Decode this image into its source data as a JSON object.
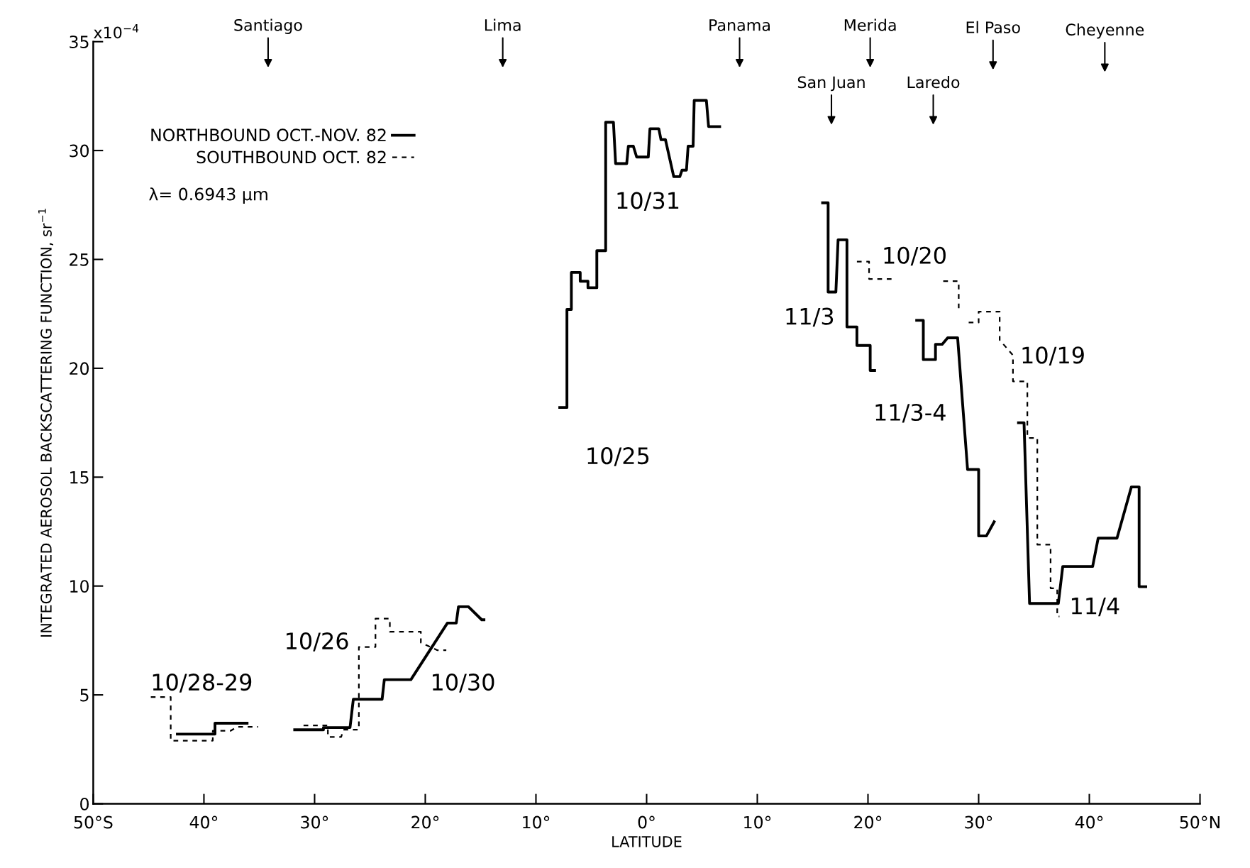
{
  "chart_data": {
    "type": "line",
    "xlabel": "LATITUDE",
    "ylabel": "INTEGRATED AEROSOL BACKSCATTERING FUNCTION, sr$^{−1}$",
    "xlim": [
      -50,
      50
    ],
    "ylim": [
      0,
      35
    ],
    "xticks": [
      {
        "value": -50,
        "label": "50°S"
      },
      {
        "value": -40,
        "label": "40°"
      },
      {
        "value": -30,
        "label": "30°"
      },
      {
        "value": -20,
        "label": "20°"
      },
      {
        "value": -10,
        "label": "10°"
      },
      {
        "value": 0,
        "label": "0°"
      },
      {
        "value": 10,
        "label": "10°"
      },
      {
        "value": 20,
        "label": "20°"
      },
      {
        "value": 30,
        "label": "30°"
      },
      {
        "value": 40,
        "label": "40°"
      },
      {
        "value": 50,
        "label": "50°N"
      }
    ],
    "yticks": [
      0,
      5,
      10,
      15,
      20,
      25,
      30,
      35
    ],
    "grid": false,
    "legend": "top left",
    "marker": "none",
    "series": [
      {
        "name": "NORTHBOUND OCT.-NOV. 82",
        "color": "#000000",
        "line_style": "solid",
        "x": [
          -42.4,
          -39.0,
          -39.0,
          -36.1,
          null,
          -31.8,
          -29.2,
          -29.2,
          -26.8,
          -26.5,
          -23.9,
          -23.7,
          -21.3,
          -18.0,
          -17.2,
          -17.0,
          -16.1,
          -14.9,
          -14.7,
          null,
          -7.85,
          -7.2,
          -7.2,
          -6.8,
          -6.8,
          -6.0,
          -6.0,
          -5.3,
          -5.3,
          -4.5,
          -4.5,
          -3.7,
          -3.7,
          -3.0,
          -2.8,
          -1.8,
          -1.65,
          -1.2,
          -0.9,
          0.15,
          0.3,
          1.1,
          1.3,
          1.7,
          2.45,
          3.0,
          3.2,
          3.6,
          3.75,
          4.2,
          4.3,
          5.4,
          5.6,
          6.6,
          null,
          15.9,
          16.4,
          16.4,
          17.1,
          17.3,
          18.1,
          18.1,
          19.0,
          19.0,
          20.2,
          20.2,
          20.6,
          null,
          24.4,
          25.0,
          25.0,
          26.1,
          26.1,
          26.7,
          27.2,
          28.1,
          29.0,
          30.0,
          30.0,
          30.7,
          31.4,
          null,
          33.6,
          34.1,
          34.6,
          37.2,
          37.6,
          40.3,
          40.8,
          42.5,
          43.8,
          44.5,
          44.5,
          45.1
        ],
        "values": [
          3.2,
          3.2,
          3.7,
          3.7,
          null,
          3.4,
          3.4,
          3.5,
          3.5,
          4.8,
          4.8,
          5.7,
          5.7,
          8.3,
          8.3,
          9.05,
          9.05,
          8.45,
          8.45,
          null,
          18.2,
          18.2,
          22.7,
          22.7,
          24.4,
          24.4,
          24.0,
          24.0,
          23.7,
          23.7,
          25.4,
          25.4,
          31.3,
          31.3,
          29.4,
          29.4,
          30.2,
          30.2,
          29.7,
          29.7,
          31.0,
          31.0,
          30.5,
          30.5,
          28.8,
          28.8,
          29.1,
          29.1,
          30.2,
          30.2,
          32.3,
          32.3,
          31.1,
          31.1,
          null,
          27.6,
          27.6,
          23.5,
          23.5,
          25.9,
          25.9,
          21.9,
          21.9,
          21.05,
          21.05,
          19.9,
          19.9,
          null,
          22.2,
          22.2,
          20.4,
          20.4,
          21.1,
          21.1,
          21.4,
          21.4,
          15.35,
          15.35,
          12.3,
          12.3,
          12.95,
          null,
          17.5,
          17.5,
          9.2,
          9.2,
          10.9,
          10.9,
          12.2,
          12.2,
          14.55,
          14.55,
          9.97,
          9.97
        ]
      },
      {
        "name": "SOUTHBOUND OCT. 82",
        "color": "#000000",
        "line_style": "dashed",
        "x": [
          -44.8,
          -43.0,
          -43.0,
          -39.2,
          -39.2,
          -37.6,
          -37.0,
          -35.1,
          null,
          -31.0,
          -28.8,
          -28.8,
          -27.6,
          -27.4,
          -26.0,
          -26.0,
          -24.5,
          -24.5,
          -23.2,
          -23.2,
          -20.4,
          -20.4,
          -18.9,
          -18.1,
          null,
          19.0,
          20.1,
          20.1,
          22.3,
          null,
          26.8,
          28.2,
          28.2,
          null,
          29.1,
          30.0,
          30.0,
          31.9,
          31.9,
          33.1,
          33.1,
          34.4,
          34.4,
          35.3,
          35.3,
          36.5,
          36.5,
          37.1,
          37.1,
          37.3
        ],
        "values": [
          4.9,
          4.9,
          2.9,
          2.9,
          3.35,
          3.35,
          3.53,
          3.53,
          null,
          3.6,
          3.6,
          3.07,
          3.07,
          3.4,
          3.4,
          7.2,
          7.2,
          8.5,
          8.5,
          7.9,
          7.9,
          7.4,
          7.05,
          7.05,
          null,
          24.9,
          24.9,
          24.1,
          24.1,
          null,
          24.0,
          24.0,
          22.7,
          null,
          22.1,
          22.1,
          22.6,
          22.6,
          21.3,
          20.6,
          19.4,
          19.4,
          16.8,
          16.8,
          11.9,
          11.9,
          9.9,
          9.9,
          8.6,
          8.6
        ]
      }
    ],
    "annotations": [
      "x10$^{−4}$",
      "λ= 0.6943 μm",
      "Santiago",
      "Lima",
      "Panama",
      "Merida",
      "El Paso",
      "Cheyenne",
      "San Juan",
      "Laredo",
      "10/28-29",
      "10/26",
      "10/30",
      "10/25",
      "10/31",
      "11/3",
      "10/20",
      "11/3-4",
      "10/19",
      "11/4"
    ]
  }
}
